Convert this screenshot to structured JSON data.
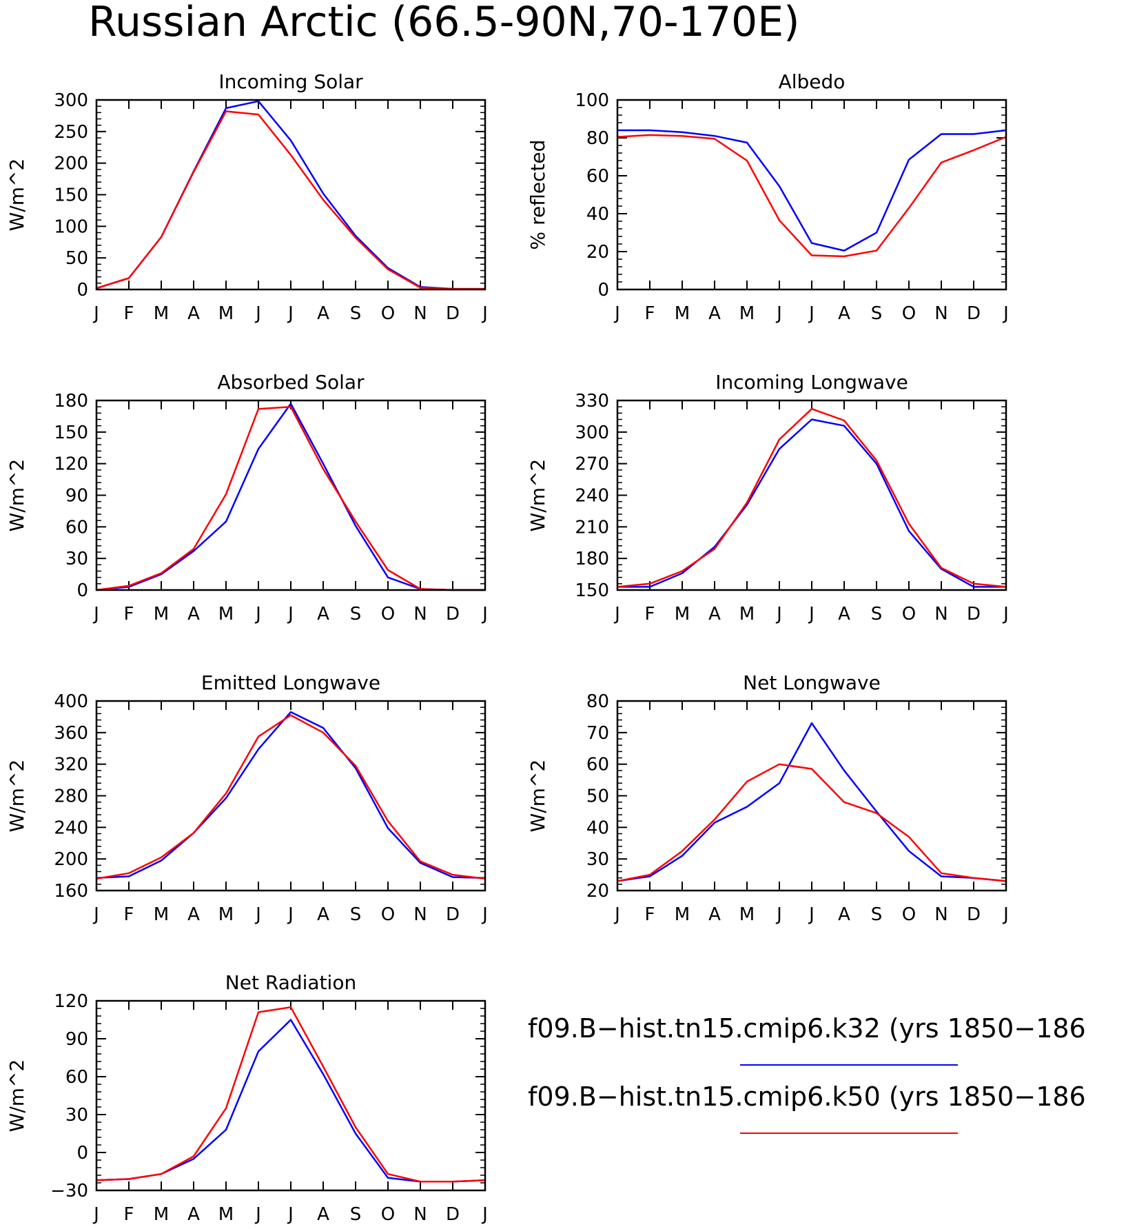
{
  "title": "Russian Arctic (66.5-90N,70-170E)",
  "months": [
    "J",
    "F",
    "M",
    "A",
    "M",
    "J",
    "J",
    "A",
    "S",
    "O",
    "N",
    "D",
    "J"
  ],
  "colors": {
    "k32": "#0000ff",
    "k50": "#ff0000"
  },
  "legend": [
    {
      "key": "k32",
      "label": "f09.B-hist.tn15.cmip6.k32 (yrs 1850-186",
      "color": "#0000ff"
    },
    {
      "key": "k50",
      "label": "f09.B-hist.tn15.cmip6.k50 (yrs 1850-186",
      "color": "#ff0000"
    }
  ],
  "chart_data": [
    {
      "id": "incoming-solar",
      "type": "line",
      "title": "Incoming Solar",
      "ylabel": "W/m^2",
      "ylim": [
        0,
        300
      ],
      "yticks": [
        0,
        50,
        100,
        150,
        200,
        250,
        300
      ],
      "y_minor_step": 10,
      "categories": [
        "J",
        "F",
        "M",
        "A",
        "M",
        "J",
        "J",
        "A",
        "S",
        "O",
        "N",
        "D",
        "J"
      ],
      "series": [
        {
          "key": "k32",
          "values": [
            2,
            18,
            83,
            187,
            287,
            298,
            236,
            152,
            85,
            34,
            4,
            1,
            1
          ]
        },
        {
          "key": "k50",
          "values": [
            2,
            18,
            83,
            186,
            282,
            277,
            213,
            142,
            82,
            32,
            3,
            1,
            1
          ]
        }
      ]
    },
    {
      "id": "albedo",
      "type": "line",
      "title": "Albedo",
      "ylabel": "% reflected",
      "ylim": [
        0,
        100
      ],
      "yticks": [
        0,
        20,
        40,
        60,
        80,
        100
      ],
      "y_minor_step": 4,
      "categories": [
        "J",
        "F",
        "M",
        "A",
        "M",
        "J",
        "J",
        "A",
        "S",
        "O",
        "N",
        "D",
        "J"
      ],
      "series": [
        {
          "key": "k32",
          "values": [
            84,
            84,
            83,
            81,
            77.5,
            54.5,
            24.5,
            20.5,
            30,
            68.5,
            82,
            82,
            84
          ]
        },
        {
          "key": "k50",
          "values": [
            80.5,
            81.5,
            81,
            79.5,
            68,
            36.5,
            18,
            17.5,
            20.5,
            43,
            67,
            73.5,
            80.5
          ]
        }
      ]
    },
    {
      "id": "absorbed-solar",
      "type": "line",
      "title": "Absorbed Solar",
      "ylabel": "W/m^2",
      "ylim": [
        0,
        180
      ],
      "yticks": [
        0,
        30,
        60,
        90,
        120,
        150,
        180
      ],
      "y_minor_step": 6,
      "categories": [
        "J",
        "F",
        "M",
        "A",
        "M",
        "J",
        "J",
        "A",
        "S",
        "O",
        "N",
        "D",
        "J"
      ],
      "series": [
        {
          "key": "k32",
          "values": [
            0,
            3,
            15,
            37,
            65,
            134,
            177,
            120,
            61,
            12,
            1,
            0,
            0
          ]
        },
        {
          "key": "k50",
          "values": [
            0,
            4,
            16,
            39,
            91,
            172,
            174,
            115,
            65,
            19,
            1,
            0,
            0
          ]
        }
      ]
    },
    {
      "id": "incoming-longwave",
      "type": "line",
      "title": "Incoming Longwave",
      "ylabel": "W/m^2",
      "ylim": [
        150,
        330
      ],
      "yticks": [
        150,
        180,
        210,
        240,
        270,
        300,
        330
      ],
      "y_minor_step": 6,
      "categories": [
        "J",
        "F",
        "M",
        "A",
        "M",
        "J",
        "J",
        "A",
        "S",
        "O",
        "N",
        "D",
        "J"
      ],
      "series": [
        {
          "key": "k32",
          "values": [
            153,
            153,
            166,
            191,
            231,
            284,
            312,
            306,
            270,
            206,
            170,
            153,
            153
          ]
        },
        {
          "key": "k50",
          "values": [
            153,
            156,
            168,
            189,
            233,
            293,
            322,
            311,
            273,
            213,
            171,
            156,
            153
          ]
        }
      ]
    },
    {
      "id": "emitted-longwave",
      "type": "line",
      "title": "Emitted Longwave",
      "ylabel": "W/m^2",
      "ylim": [
        160,
        400
      ],
      "yticks": [
        160,
        200,
        240,
        280,
        320,
        360,
        400
      ],
      "y_minor_step": 8,
      "categories": [
        "J",
        "F",
        "M",
        "A",
        "M",
        "J",
        "J",
        "A",
        "S",
        "O",
        "N",
        "D",
        "J"
      ],
      "series": [
        {
          "key": "k32",
          "values": [
            176,
            178,
            198,
            233,
            277,
            339,
            386,
            366,
            315,
            239,
            195,
            177,
            176
          ]
        },
        {
          "key": "k50",
          "values": [
            175,
            182,
            202,
            233,
            283,
            355,
            382,
            360,
            318,
            248,
            197,
            180,
            175
          ]
        }
      ]
    },
    {
      "id": "net-longwave",
      "type": "line",
      "title": "Net Longwave",
      "ylabel": "W/m^2",
      "ylim": [
        20,
        80
      ],
      "yticks": [
        20,
        30,
        40,
        50,
        60,
        70,
        80
      ],
      "y_minor_step": 2,
      "categories": [
        "J",
        "F",
        "M",
        "A",
        "M",
        "J",
        "J",
        "A",
        "S",
        "O",
        "N",
        "D",
        "J"
      ],
      "series": [
        {
          "key": "k32",
          "values": [
            23,
            24.5,
            31,
            41.5,
            46.5,
            54,
            73,
            58,
            45,
            32.5,
            24.5,
            24,
            23
          ]
        },
        {
          "key": "k50",
          "values": [
            23,
            25,
            32.5,
            42.5,
            54.5,
            60,
            58.5,
            48,
            44.5,
            37,
            25.5,
            24,
            23
          ]
        }
      ]
    },
    {
      "id": "net-radiation",
      "type": "line",
      "title": "Net Radiation",
      "ylabel": "W/m^2",
      "ylim": [
        -30,
        120
      ],
      "yticks": [
        -30,
        0,
        30,
        60,
        90,
        120
      ],
      "y_minor_step": 6,
      "categories": [
        "J",
        "F",
        "M",
        "A",
        "M",
        "J",
        "J",
        "A",
        "S",
        "O",
        "N",
        "D",
        "J"
      ],
      "series": [
        {
          "key": "k32",
          "values": [
            -22,
            -21,
            -17,
            -5,
            18,
            80,
            105,
            62,
            15,
            -20,
            -23,
            -23,
            -22
          ]
        },
        {
          "key": "k50",
          "values": [
            -22,
            -21,
            -17,
            -3,
            35,
            111,
            115,
            68,
            20,
            -17,
            -23,
            -23,
            -22
          ]
        }
      ]
    }
  ]
}
